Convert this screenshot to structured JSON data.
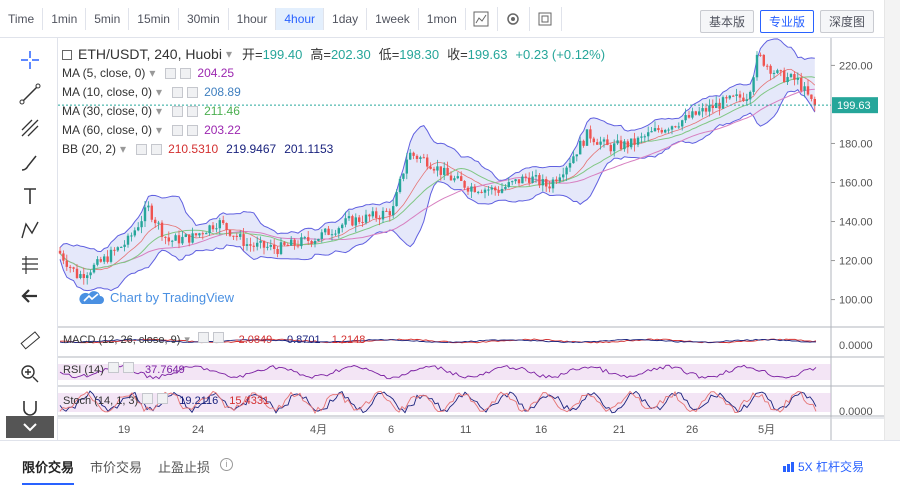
{
  "toolbar": {
    "timeframes": [
      "Time",
      "1min",
      "5min",
      "15min",
      "30min",
      "1hour",
      "4hour",
      "1day",
      "1week",
      "1mon"
    ],
    "active": "4hour",
    "views": [
      "基本版",
      "专业版",
      "深度图"
    ],
    "active_view": "专业版"
  },
  "legend": {
    "symbol": "ETH/USDT, 240, Huobi",
    "open_label": "开=",
    "open": "199.40",
    "high_label": "高=",
    "high": "202.30",
    "low_label": "低=",
    "low": "198.30",
    "close_label": "收=",
    "close": "199.63",
    "change": "+0.23 (+0.12%)",
    "ma5_label": "MA (5, close, 0)",
    "ma5": "204.25",
    "ma10_label": "MA (10, close, 0)",
    "ma10": "208.89",
    "ma30_label": "MA (30, close, 0)",
    "ma30": "211.46",
    "ma60_label": "MA (60, close, 0)",
    "ma60": "203.22",
    "bb_label": "BB (20, 2)",
    "bb1": "210.5310",
    "bb2": "219.9467",
    "bb3": "201.1153"
  },
  "watermark": "Chart by TradingView",
  "indicators": {
    "macd_label": "MACD (12, 26, close, 9)",
    "macd1": "-2.0849",
    "macd2": "-0.8701",
    "macd3": "1.2148",
    "macd_axis": "0.0000",
    "rsi_label": "RSI (14)",
    "rsi1": "37.7649",
    "stoch_label": "Stoch (14, 1, 3)",
    "stoch1": "19.2116",
    "stoch2": "15.4331",
    "stoch_axis": "0.0000"
  },
  "chart_data": {
    "type": "candlestick",
    "yaxis": {
      "ticks": [
        "220.00",
        "200.00",
        "180.00",
        "160.00",
        "140.00",
        "120.00",
        "100.00"
      ]
    },
    "xaxis": {
      "ticks": [
        "19",
        "24",
        "4月",
        "6",
        "11",
        "16",
        "21",
        "26",
        "5月"
      ]
    },
    "last_price": "199.63",
    "colors": {
      "up": "#26a69a",
      "down": "#ef5350",
      "bb_fill": "#c6cdf5",
      "bb_line": "#6060e0"
    }
  },
  "bottom": {
    "tabs": [
      "限价交易",
      "市价交易",
      "止盈止损"
    ],
    "active": "限价交易",
    "leverage": "5X 杠杆交易"
  }
}
